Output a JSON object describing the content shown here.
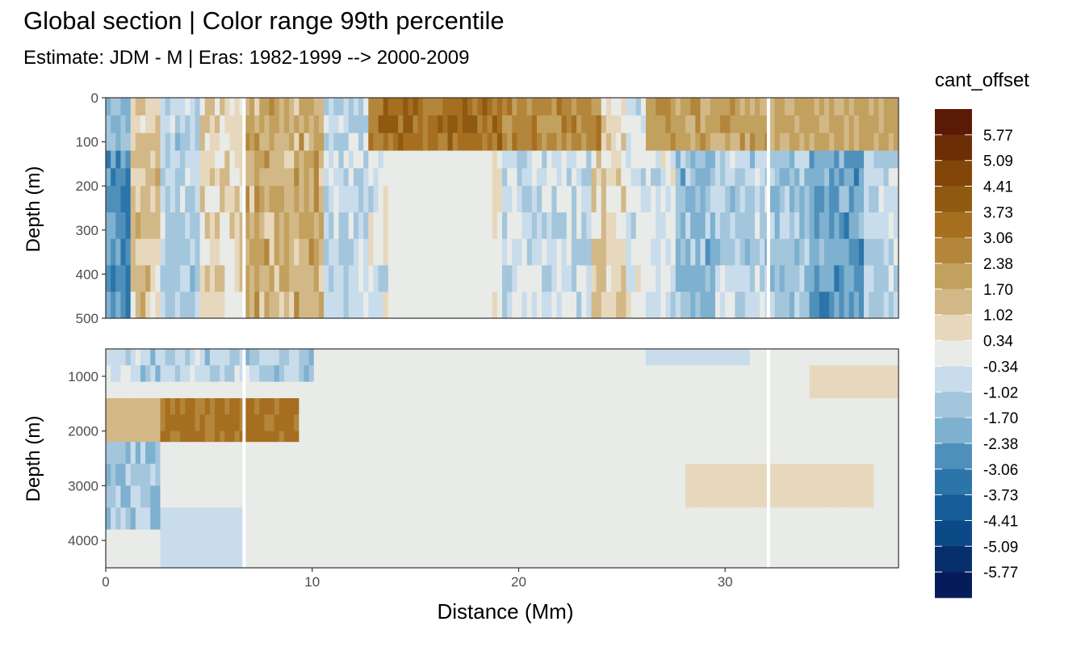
{
  "title": "Global section | Color range 99th percentile",
  "subtitle": "Estimate: JDM - M | Eras: 1982-1999 --> 2000-2009",
  "chart_data": {
    "type": "heatmap",
    "xlabel": "Distance (Mm)",
    "ylabel_top": "Depth (m)",
    "ylabel_bottom": "Depth (m)",
    "x_ticks": [
      "0",
      "10",
      "20",
      "30"
    ],
    "x_tick_values": [
      0,
      10,
      20,
      30
    ],
    "xlim": [
      0,
      38.4
    ],
    "top_panel": {
      "ylim": [
        0,
        500
      ],
      "y_ticks": [
        "0",
        "100",
        "200",
        "300",
        "400",
        "500"
      ],
      "y_tick_values": [
        0,
        100,
        200,
        300,
        400,
        500
      ]
    },
    "bottom_panel": {
      "ylim": [
        500,
        4500
      ],
      "y_ticks": [
        "1000",
        "2000",
        "3000",
        "4000"
      ],
      "y_tick_values": [
        1000,
        2000,
        3000,
        4000
      ]
    },
    "legend": {
      "title": "cant_offset",
      "placement": "right",
      "labels": [
        "5.77",
        "5.09",
        "4.41",
        "3.73",
        "3.06",
        "2.38",
        "1.70",
        "1.02",
        "0.34",
        "-0.34",
        "-1.02",
        "-1.70",
        "-2.38",
        "-3.06",
        "-3.73",
        "-4.41",
        "-5.09",
        "-5.77"
      ],
      "colors": [
        "#5b1a05",
        "#6e2e05",
        "#83460a",
        "#8f5a10",
        "#a66f1f",
        "#b3863b",
        "#c2a05e",
        "#d2b886",
        "#e7d8bd",
        "#e8ebe8",
        "#c8dceb",
        "#a3c6dc",
        "#7eb0cf",
        "#4f90bb",
        "#2c75aa",
        "#175d9a",
        "#0c4a87",
        "#072f6b",
        "#061b5a"
      ]
    },
    "gaps_at_distance": [
      6.7,
      32.1
    ]
  }
}
